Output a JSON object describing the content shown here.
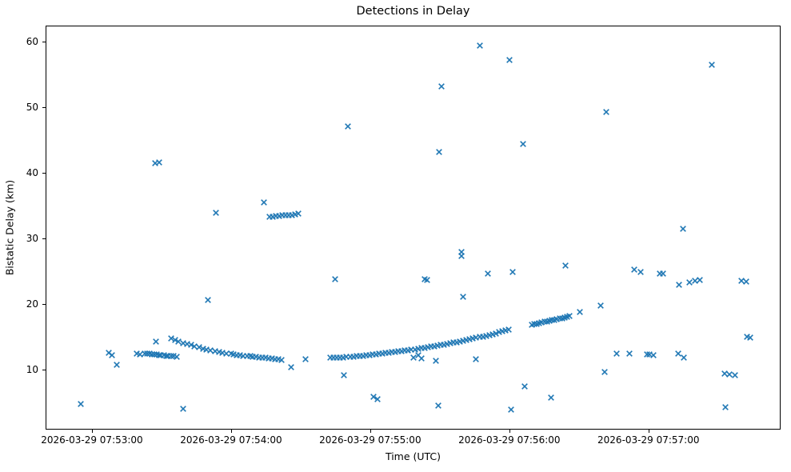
{
  "figure": {
    "background": "#ffffff",
    "spine_color": "#000000",
    "text_color": "#000000"
  },
  "chart_data": {
    "type": "scatter",
    "title": "Detections in Delay",
    "xlabel": "Time (UTC)",
    "ylabel": "Bistatic Delay (km)",
    "marker": "x",
    "marker_color": "#1f77b4",
    "grid": false,
    "legend": null,
    "x_unit": "seconds after 2026-03-29 07:53:00 UTC",
    "xlim": [
      -20,
      297
    ],
    "ylim": [
      0.85,
      62.44
    ],
    "y_ticks": [
      10,
      20,
      30,
      40,
      50,
      60
    ],
    "x_ticks": [
      {
        "t": 0,
        "label": "2026-03-29 07:53:00"
      },
      {
        "t": 60,
        "label": "2026-03-29 07:54:00"
      },
      {
        "t": 120,
        "label": "2026-03-29 07:55:00"
      },
      {
        "t": 180,
        "label": "2026-03-29 07:56:00"
      },
      {
        "t": 240,
        "label": "2026-03-29 07:57:00"
      }
    ],
    "points": [
      [
        -5.2,
        4.65
      ],
      [
        7.0,
        12.5
      ],
      [
        8.3,
        12.15
      ],
      [
        10.3,
        10.6
      ],
      [
        19.0,
        12.4
      ],
      [
        20.3,
        12.25
      ],
      [
        26.9,
        41.5
      ],
      [
        28.6,
        41.65
      ],
      [
        27.2,
        14.15
      ],
      [
        22.4,
        12.35
      ],
      [
        23.4,
        12.3
      ],
      [
        24.5,
        12.3
      ],
      [
        25.5,
        12.25
      ],
      [
        26.5,
        12.2
      ],
      [
        27.6,
        12.2
      ],
      [
        28.6,
        12.15
      ],
      [
        29.6,
        12.15
      ],
      [
        30.7,
        12.1
      ],
      [
        31.7,
        12.05
      ],
      [
        32.7,
        12.0
      ],
      [
        33.8,
        12.0
      ],
      [
        34.8,
        11.95
      ],
      [
        36.2,
        11.9
      ],
      [
        34.1,
        14.65
      ],
      [
        35.5,
        14.45
      ],
      [
        37.2,
        14.2
      ],
      [
        39.0,
        14.0
      ],
      [
        40.7,
        13.85
      ],
      [
        42.4,
        13.65
      ],
      [
        44.1,
        13.5
      ],
      [
        45.9,
        13.3
      ],
      [
        47.6,
        13.15
      ],
      [
        49.3,
        13.0
      ],
      [
        51.0,
        12.85
      ],
      [
        52.8,
        12.7
      ],
      [
        54.5,
        12.6
      ],
      [
        56.2,
        12.5
      ],
      [
        57.9,
        12.4
      ],
      [
        59.7,
        12.3
      ],
      [
        61.0,
        12.2
      ],
      [
        62.4,
        12.15
      ],
      [
        63.8,
        12.1
      ],
      [
        65.2,
        12.05
      ],
      [
        66.6,
        12.0
      ],
      [
        68.0,
        11.95
      ],
      [
        69.3,
        11.9
      ],
      [
        70.7,
        11.85
      ],
      [
        72.1,
        11.8
      ],
      [
        73.4,
        11.75
      ],
      [
        74.8,
        11.7
      ],
      [
        76.2,
        11.65
      ],
      [
        77.6,
        11.6
      ],
      [
        79.0,
        11.5
      ],
      [
        80.3,
        11.45
      ],
      [
        81.7,
        11.4
      ],
      [
        85.9,
        10.25
      ],
      [
        92.1,
        11.45
      ],
      [
        49.7,
        20.55
      ],
      [
        53.4,
        33.9
      ],
      [
        39.0,
        3.95
      ],
      [
        74.1,
        35.5
      ],
      [
        76.6,
        33.3
      ],
      [
        77.9,
        33.35
      ],
      [
        79.3,
        33.4
      ],
      [
        80.7,
        33.45
      ],
      [
        82.1,
        33.5
      ],
      [
        83.4,
        33.5
      ],
      [
        84.8,
        33.55
      ],
      [
        86.2,
        33.6
      ],
      [
        87.6,
        33.65
      ],
      [
        89.0,
        33.8
      ],
      [
        104.8,
        23.8
      ],
      [
        108.6,
        9.1
      ],
      [
        110.3,
        47.1
      ],
      [
        102.8,
        11.7
      ],
      [
        104.2,
        11.72
      ],
      [
        105.6,
        11.74
      ],
      [
        107.0,
        11.77
      ],
      [
        108.4,
        11.8
      ],
      [
        109.8,
        11.83
      ],
      [
        111.2,
        11.87
      ],
      [
        112.6,
        11.91
      ],
      [
        114.0,
        11.95
      ],
      [
        115.4,
        12.0
      ],
      [
        116.8,
        12.05
      ],
      [
        118.2,
        12.1
      ],
      [
        119.6,
        12.15
      ],
      [
        121.0,
        12.2
      ],
      [
        122.4,
        12.26
      ],
      [
        123.8,
        12.31
      ],
      [
        125.2,
        12.37
      ],
      [
        126.6,
        12.43
      ],
      [
        128.0,
        12.49
      ],
      [
        129.4,
        12.55
      ],
      [
        130.8,
        12.62
      ],
      [
        132.2,
        12.68
      ],
      [
        133.6,
        12.75
      ],
      [
        135.0,
        12.82
      ],
      [
        136.4,
        12.89
      ],
      [
        137.8,
        12.96
      ],
      [
        139.2,
        13.03
      ],
      [
        140.6,
        13.11
      ],
      [
        142.0,
        13.18
      ],
      [
        143.4,
        13.26
      ],
      [
        144.8,
        13.34
      ],
      [
        146.2,
        13.42
      ],
      [
        147.6,
        13.5
      ],
      [
        149.0,
        13.59
      ],
      [
        150.4,
        13.67
      ],
      [
        151.8,
        13.76
      ],
      [
        153.2,
        13.85
      ],
      [
        154.6,
        13.94
      ],
      [
        156.0,
        14.04
      ],
      [
        157.4,
        14.13
      ],
      [
        158.8,
        14.23
      ],
      [
        160.2,
        14.33
      ],
      [
        161.6,
        14.44
      ],
      [
        163.0,
        14.54
      ],
      [
        164.4,
        14.65
      ],
      [
        165.8,
        14.76
      ],
      [
        167.2,
        14.87
      ],
      [
        168.6,
        14.99
      ],
      [
        170.0,
        15.11
      ],
      [
        171.4,
        15.23
      ],
      [
        172.8,
        15.35
      ],
      [
        174.2,
        15.48
      ],
      [
        175.6,
        15.61
      ],
      [
        177.0,
        15.74
      ],
      [
        178.4,
        15.87
      ],
      [
        179.8,
        16.05
      ],
      [
        138.6,
        11.8
      ],
      [
        140.6,
        12.1
      ],
      [
        142.0,
        11.6
      ],
      [
        148.3,
        11.2
      ],
      [
        165.5,
        11.5
      ],
      [
        121.4,
        5.75
      ],
      [
        123.1,
        5.35
      ],
      [
        143.4,
        23.7
      ],
      [
        144.6,
        23.6
      ],
      [
        149.3,
        4.45
      ],
      [
        149.7,
        43.2
      ],
      [
        150.7,
        53.3
      ],
      [
        159.3,
        27.9
      ],
      [
        159.4,
        27.35
      ],
      [
        160.0,
        21.0
      ],
      [
        167.2,
        59.55
      ],
      [
        170.7,
        24.55
      ],
      [
        180.3,
        57.3
      ],
      [
        181.7,
        24.9
      ],
      [
        181.0,
        3.8
      ],
      [
        185.9,
        44.5
      ],
      [
        186.6,
        7.3
      ],
      [
        189.7,
        16.75
      ],
      [
        190.8,
        16.85
      ],
      [
        191.9,
        16.95
      ],
      [
        193.0,
        17.0
      ],
      [
        194.1,
        17.1
      ],
      [
        195.2,
        17.2
      ],
      [
        196.3,
        17.25
      ],
      [
        197.4,
        17.35
      ],
      [
        198.5,
        17.45
      ],
      [
        199.6,
        17.5
      ],
      [
        200.7,
        17.6
      ],
      [
        201.8,
        17.7
      ],
      [
        202.9,
        17.8
      ],
      [
        204.0,
        17.9
      ],
      [
        205.1,
        18.0
      ],
      [
        206.2,
        18.15
      ],
      [
        198.3,
        5.6
      ],
      [
        204.5,
        25.8
      ],
      [
        210.7,
        18.7
      ],
      [
        219.7,
        19.75
      ],
      [
        221.4,
        9.5
      ],
      [
        222.1,
        49.3
      ],
      [
        226.6,
        12.35
      ],
      [
        232.1,
        12.4
      ],
      [
        234.1,
        25.2
      ],
      [
        236.9,
        24.9
      ],
      [
        245.3,
        24.65
      ],
      [
        246.5,
        24.55
      ],
      [
        239.7,
        12.25
      ],
      [
        240.7,
        12.2
      ],
      [
        242.4,
        12.1
      ],
      [
        253.1,
        12.4
      ],
      [
        255.5,
        11.75
      ],
      [
        253.4,
        22.95
      ],
      [
        255.2,
        31.5
      ],
      [
        257.9,
        23.3
      ],
      [
        260.3,
        23.45
      ],
      [
        262.4,
        23.65
      ],
      [
        267.6,
        56.6
      ],
      [
        273.1,
        9.3
      ],
      [
        275.2,
        9.2
      ],
      [
        277.6,
        9.0
      ],
      [
        273.4,
        4.2
      ],
      [
        280.3,
        23.45
      ],
      [
        282.4,
        23.35
      ],
      [
        282.8,
        14.9
      ],
      [
        284.1,
        14.85
      ]
    ]
  }
}
